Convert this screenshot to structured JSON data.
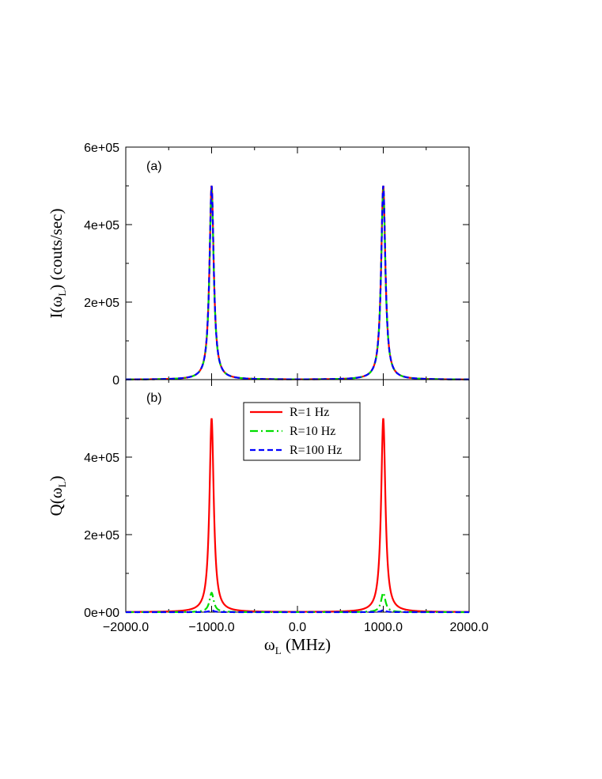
{
  "chart_data": [
    {
      "id": "a",
      "type": "line",
      "panel_label": "(a)",
      "ylabel": "I(ω",
      "ylabel_sub": "L",
      "ylabel_suffix": ") (couts/sec)",
      "xlim": [
        -2000,
        2000
      ],
      "ylim": [
        0,
        600000
      ],
      "ytick_values": [
        0,
        200000,
        400000,
        600000
      ],
      "ytick_labels": [
        "0",
        "2e+05",
        "4e+05",
        "6e+05"
      ],
      "grid": false,
      "series": [
        {
          "name": "R=1 Hz",
          "color": "#ff0000",
          "dash": "solid",
          "peak_x": [
            -1000,
            1000
          ],
          "peak_y": 500000,
          "hwhm": 30
        },
        {
          "name": "R=10 Hz",
          "color": "#00dd00",
          "dash": "dashdot",
          "peak_x": [
            -1000,
            1000
          ],
          "peak_y": 490000,
          "hwhm": 30
        },
        {
          "name": "R=100 Hz",
          "color": "#0000ff",
          "dash": "dashed",
          "peak_x": [
            -1000,
            1000
          ],
          "peak_y": 500000,
          "hwhm": 30
        }
      ]
    },
    {
      "id": "b",
      "type": "line",
      "panel_label": "(b)",
      "ylabel": "Q(ω",
      "ylabel_sub": "L",
      "ylabel_suffix": ")",
      "xlabel": "ω",
      "xlabel_sub": "L",
      "xlabel_suffix": " (MHz)",
      "xlim": [
        -2000,
        2000
      ],
      "ylim": [
        0,
        600000
      ],
      "xtick_values": [
        -2000,
        -1000,
        0,
        1000,
        2000
      ],
      "xtick_labels": [
        "−2000.0",
        "−1000.0",
        "0.0",
        "1000.0",
        "2000.0"
      ],
      "ytick_values": [
        0,
        200000,
        400000
      ],
      "ytick_labels": [
        "0e+00",
        "2e+05",
        "4e+05"
      ],
      "grid": false,
      "legend_position": "top-center",
      "series": [
        {
          "name": "R=1 Hz",
          "color": "#ff0000",
          "dash": "solid",
          "peak_x": [
            -1000,
            1000
          ],
          "peak_y": 500000,
          "hwhm": 30
        },
        {
          "name": "R=10 Hz",
          "color": "#00dd00",
          "dash": "dashdot",
          "peak_x": [
            -1000,
            1000
          ],
          "peak_y": 50000,
          "hwhm": 30
        },
        {
          "name": "R=100 Hz",
          "color": "#0000ff",
          "dash": "dashed",
          "peak_x": [
            -1000,
            1000
          ],
          "peak_y": 5000,
          "hwhm": 30
        }
      ]
    }
  ]
}
